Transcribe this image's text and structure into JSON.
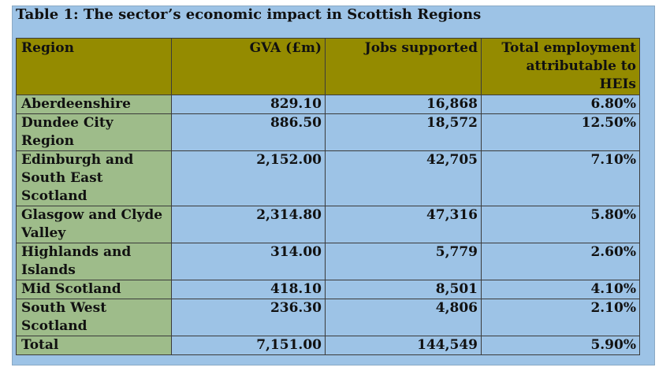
{
  "caption": "Table 1: The sector’s economic impact in Scottish Regions",
  "columns": [
    "Region",
    "GVA (£m)",
    "Jobs supported",
    "Total employment attributable to HEIs"
  ],
  "rows": [
    [
      "Aberdeenshire",
      "829.10",
      "16,868",
      "6.80%"
    ],
    [
      "Dundee City Region",
      "886.50",
      "18,572",
      "12.50%"
    ],
    [
      "Edinburgh and South East Scotland",
      "2,152.00",
      "42,705",
      "7.10%"
    ],
    [
      "Glasgow and Clyde Valley",
      "2,314.80",
      "47,316",
      "5.80%"
    ],
    [
      "Highlands and Islands",
      "314.00",
      "5,779",
      "2.60%"
    ],
    [
      "Mid Scotland",
      "418.10",
      "8,501",
      "4.10%"
    ],
    [
      "South West Scotland",
      "236.30",
      "4,806",
      "2.10%"
    ],
    [
      "Total",
      "7,151.00",
      "144,549",
      "5.90%"
    ]
  ],
  "colors": {
    "panel": "#9dc3e6",
    "header": "#948b00",
    "region_column": "#9ebc8a"
  }
}
